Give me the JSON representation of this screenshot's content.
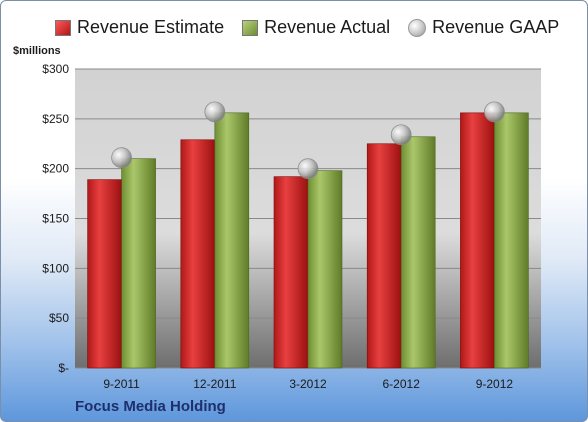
{
  "chart_data": {
    "type": "bar",
    "title": "",
    "ylabel": "$millions",
    "xlabel": "",
    "categories": [
      "9-2011",
      "12-2011",
      "3-2012",
      "6-2012",
      "9-2012"
    ],
    "series": [
      {
        "name": "Revenue Estimate",
        "kind": "bar",
        "color": "#d42a2a",
        "values": [
          189,
          229,
          192,
          225,
          256
        ]
      },
      {
        "name": "Revenue Actual",
        "kind": "bar",
        "color": "#96b356",
        "values": [
          210,
          256,
          198,
          232,
          256
        ]
      },
      {
        "name": "Revenue GAAP",
        "kind": "marker",
        "color": "#c0c0c0",
        "values": [
          211,
          257,
          200,
          234,
          257
        ]
      }
    ],
    "ylim": [
      0,
      300
    ],
    "yticks": [
      0,
      50,
      100,
      150,
      200,
      250,
      300
    ],
    "ytick_labels": [
      "$-",
      "$50",
      "$100",
      "$150",
      "$200",
      "$250",
      "$300"
    ],
    "grid": true,
    "legend_position": "top",
    "footer": "Focus Media Holding"
  }
}
